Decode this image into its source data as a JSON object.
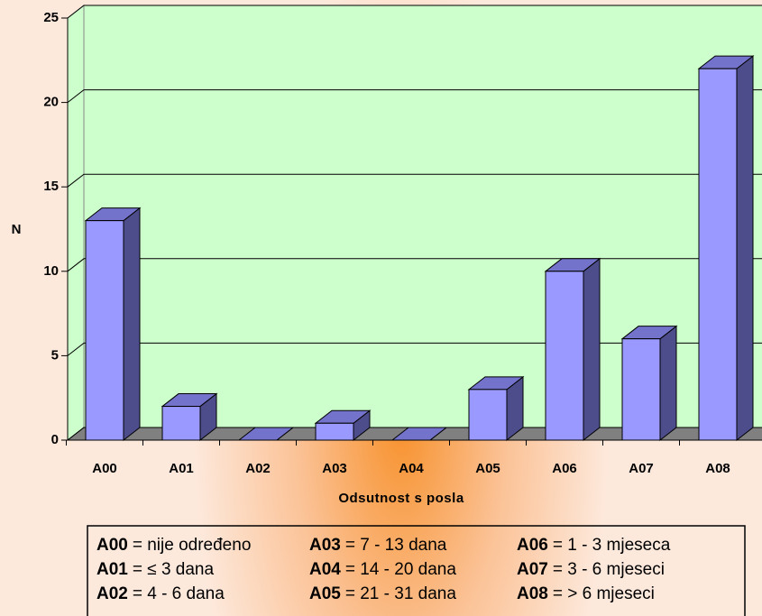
{
  "chart_data": {
    "type": "bar3d",
    "categories": [
      "A00",
      "A01",
      "A02",
      "A03",
      "A04",
      "A05",
      "A06",
      "A07",
      "A08"
    ],
    "values": [
      13,
      2,
      0,
      1,
      0,
      3,
      10,
      6,
      22
    ],
    "color": "#9999ff",
    "ylim": [
      0,
      25
    ],
    "yticks": [
      0,
      5,
      10,
      15,
      20,
      25
    ],
    "grid": true,
    "y_label": "N",
    "x_label": "Odsutnost s posla",
    "legend": [
      {
        "code": "A00",
        "text": "= nije određeno"
      },
      {
        "code": "A01",
        "text": "= ≤ 3 dana"
      },
      {
        "code": "A02",
        "text": "= 4 - 6 dana"
      },
      {
        "code": "A03",
        "text": "= 7 - 13 dana"
      },
      {
        "code": "A04",
        "text": "= 14 - 20 dana"
      },
      {
        "code": "A05",
        "text": "= 21 - 31 dana"
      },
      {
        "code": "A06",
        "text": "= 1 - 3 mjeseca"
      },
      {
        "code": "A07",
        "text": "= 3 - 6 mjeseci"
      },
      {
        "code": "A08",
        "text": "= > 6 mjeseci"
      }
    ]
  }
}
